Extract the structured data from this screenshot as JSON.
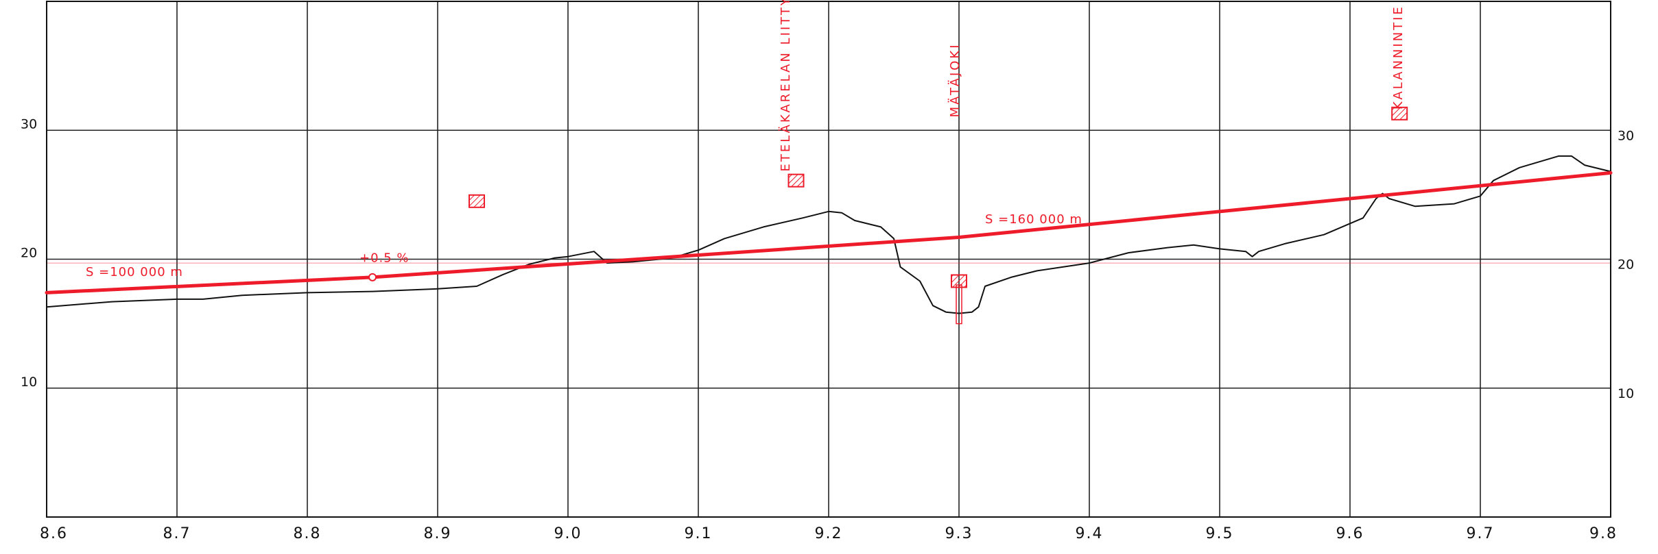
{
  "chart_data": {
    "type": "line",
    "xlim": [
      8.6,
      9.8
    ],
    "ylim": [
      0,
      40
    ],
    "x_ticks": [
      "8.6",
      "8.7",
      "8.8",
      "8.9",
      "9.0",
      "9.1",
      "9.2",
      "9.3",
      "9.4",
      "9.5",
      "9.6",
      "9.7",
      "9.8"
    ],
    "y_ticks_left": [
      "10",
      "20",
      "30"
    ],
    "y_ticks_right": [
      "10",
      "20",
      "30"
    ],
    "grid": true,
    "series": [
      {
        "role": "ground_profile",
        "color": "#111111",
        "points": [
          [
            8.6,
            16.3
          ],
          [
            8.65,
            16.7
          ],
          [
            8.7,
            16.9
          ],
          [
            8.72,
            16.9
          ],
          [
            8.75,
            17.2
          ],
          [
            8.8,
            17.4
          ],
          [
            8.85,
            17.5
          ],
          [
            8.9,
            17.7
          ],
          [
            8.93,
            17.9
          ],
          [
            8.95,
            18.8
          ],
          [
            8.97,
            19.6
          ],
          [
            8.99,
            20.1
          ],
          [
            9.0,
            20.2
          ],
          [
            9.02,
            20.6
          ],
          [
            9.03,
            19.7
          ],
          [
            9.05,
            19.8
          ],
          [
            9.08,
            20.1
          ],
          [
            9.1,
            20.7
          ],
          [
            9.12,
            21.6
          ],
          [
            9.15,
            22.5
          ],
          [
            9.18,
            23.2
          ],
          [
            9.2,
            23.7
          ],
          [
            9.21,
            23.6
          ],
          [
            9.22,
            23.0
          ],
          [
            9.24,
            22.5
          ],
          [
            9.25,
            21.6
          ],
          [
            9.255,
            19.4
          ],
          [
            9.27,
            18.3
          ],
          [
            9.28,
            16.4
          ],
          [
            9.29,
            15.9
          ],
          [
            9.3,
            15.8
          ],
          [
            9.31,
            15.9
          ],
          [
            9.315,
            16.3
          ],
          [
            9.32,
            17.9
          ],
          [
            9.34,
            18.6
          ],
          [
            9.36,
            19.1
          ],
          [
            9.38,
            19.4
          ],
          [
            9.4,
            19.7
          ],
          [
            9.43,
            20.5
          ],
          [
            9.46,
            20.9
          ],
          [
            9.48,
            21.1
          ],
          [
            9.5,
            20.8
          ],
          [
            9.52,
            20.6
          ],
          [
            9.525,
            20.2
          ],
          [
            9.53,
            20.6
          ],
          [
            9.55,
            21.2
          ],
          [
            9.58,
            21.9
          ],
          [
            9.61,
            23.2
          ],
          [
            9.62,
            24.7
          ],
          [
            9.625,
            25.1
          ],
          [
            9.63,
            24.7
          ],
          [
            9.65,
            24.1
          ],
          [
            9.68,
            24.3
          ],
          [
            9.7,
            24.9
          ],
          [
            9.71,
            26.1
          ],
          [
            9.73,
            27.1
          ],
          [
            9.76,
            28.0
          ],
          [
            9.77,
            28.0
          ],
          [
            9.78,
            27.3
          ],
          [
            9.8,
            26.8
          ]
        ]
      },
      {
        "role": "grade_line",
        "color": "#ee1c2a",
        "points": [
          [
            8.6,
            17.4
          ],
          [
            8.85,
            18.6
          ],
          [
            9.3,
            21.7
          ],
          [
            9.8,
            26.7
          ]
        ]
      }
    ],
    "annotations": [
      {
        "text": "S =100 000 m",
        "x": 8.63,
        "y": 18.7,
        "color": "#ee1c2a"
      },
      {
        "text": "+0.5 %",
        "x": 8.84,
        "y": 19.8,
        "color": "#ee1c2a"
      },
      {
        "text": "S =160 000 m",
        "x": 9.32,
        "y": 22.8,
        "color": "#ee1c2a"
      },
      {
        "text": "ETELÄKARELAN LIITTYMÄ",
        "x": 9.17,
        "y": 26.8,
        "vertical": true,
        "color": "#ee1c2a"
      },
      {
        "text": "MÄTÄJOKI",
        "x": 9.3,
        "y": 31.0,
        "vertical": true,
        "color": "#ee1c2a"
      },
      {
        "text": "KALANNINTIE",
        "x": 9.64,
        "y": 31.6,
        "vertical": true,
        "color": "#ee1c2a"
      }
    ],
    "markers": [
      {
        "kind": "hatched-box",
        "x": 8.93,
        "y": 24.5
      },
      {
        "kind": "hatched-box",
        "x": 9.175,
        "y": 26.1
      },
      {
        "kind": "hatched-box",
        "x": 9.3,
        "y": 18.3
      },
      {
        "kind": "hatched-box",
        "x": 9.638,
        "y": 31.3
      },
      {
        "kind": "vertex-circle",
        "x": 8.85,
        "y": 18.6
      }
    ]
  }
}
